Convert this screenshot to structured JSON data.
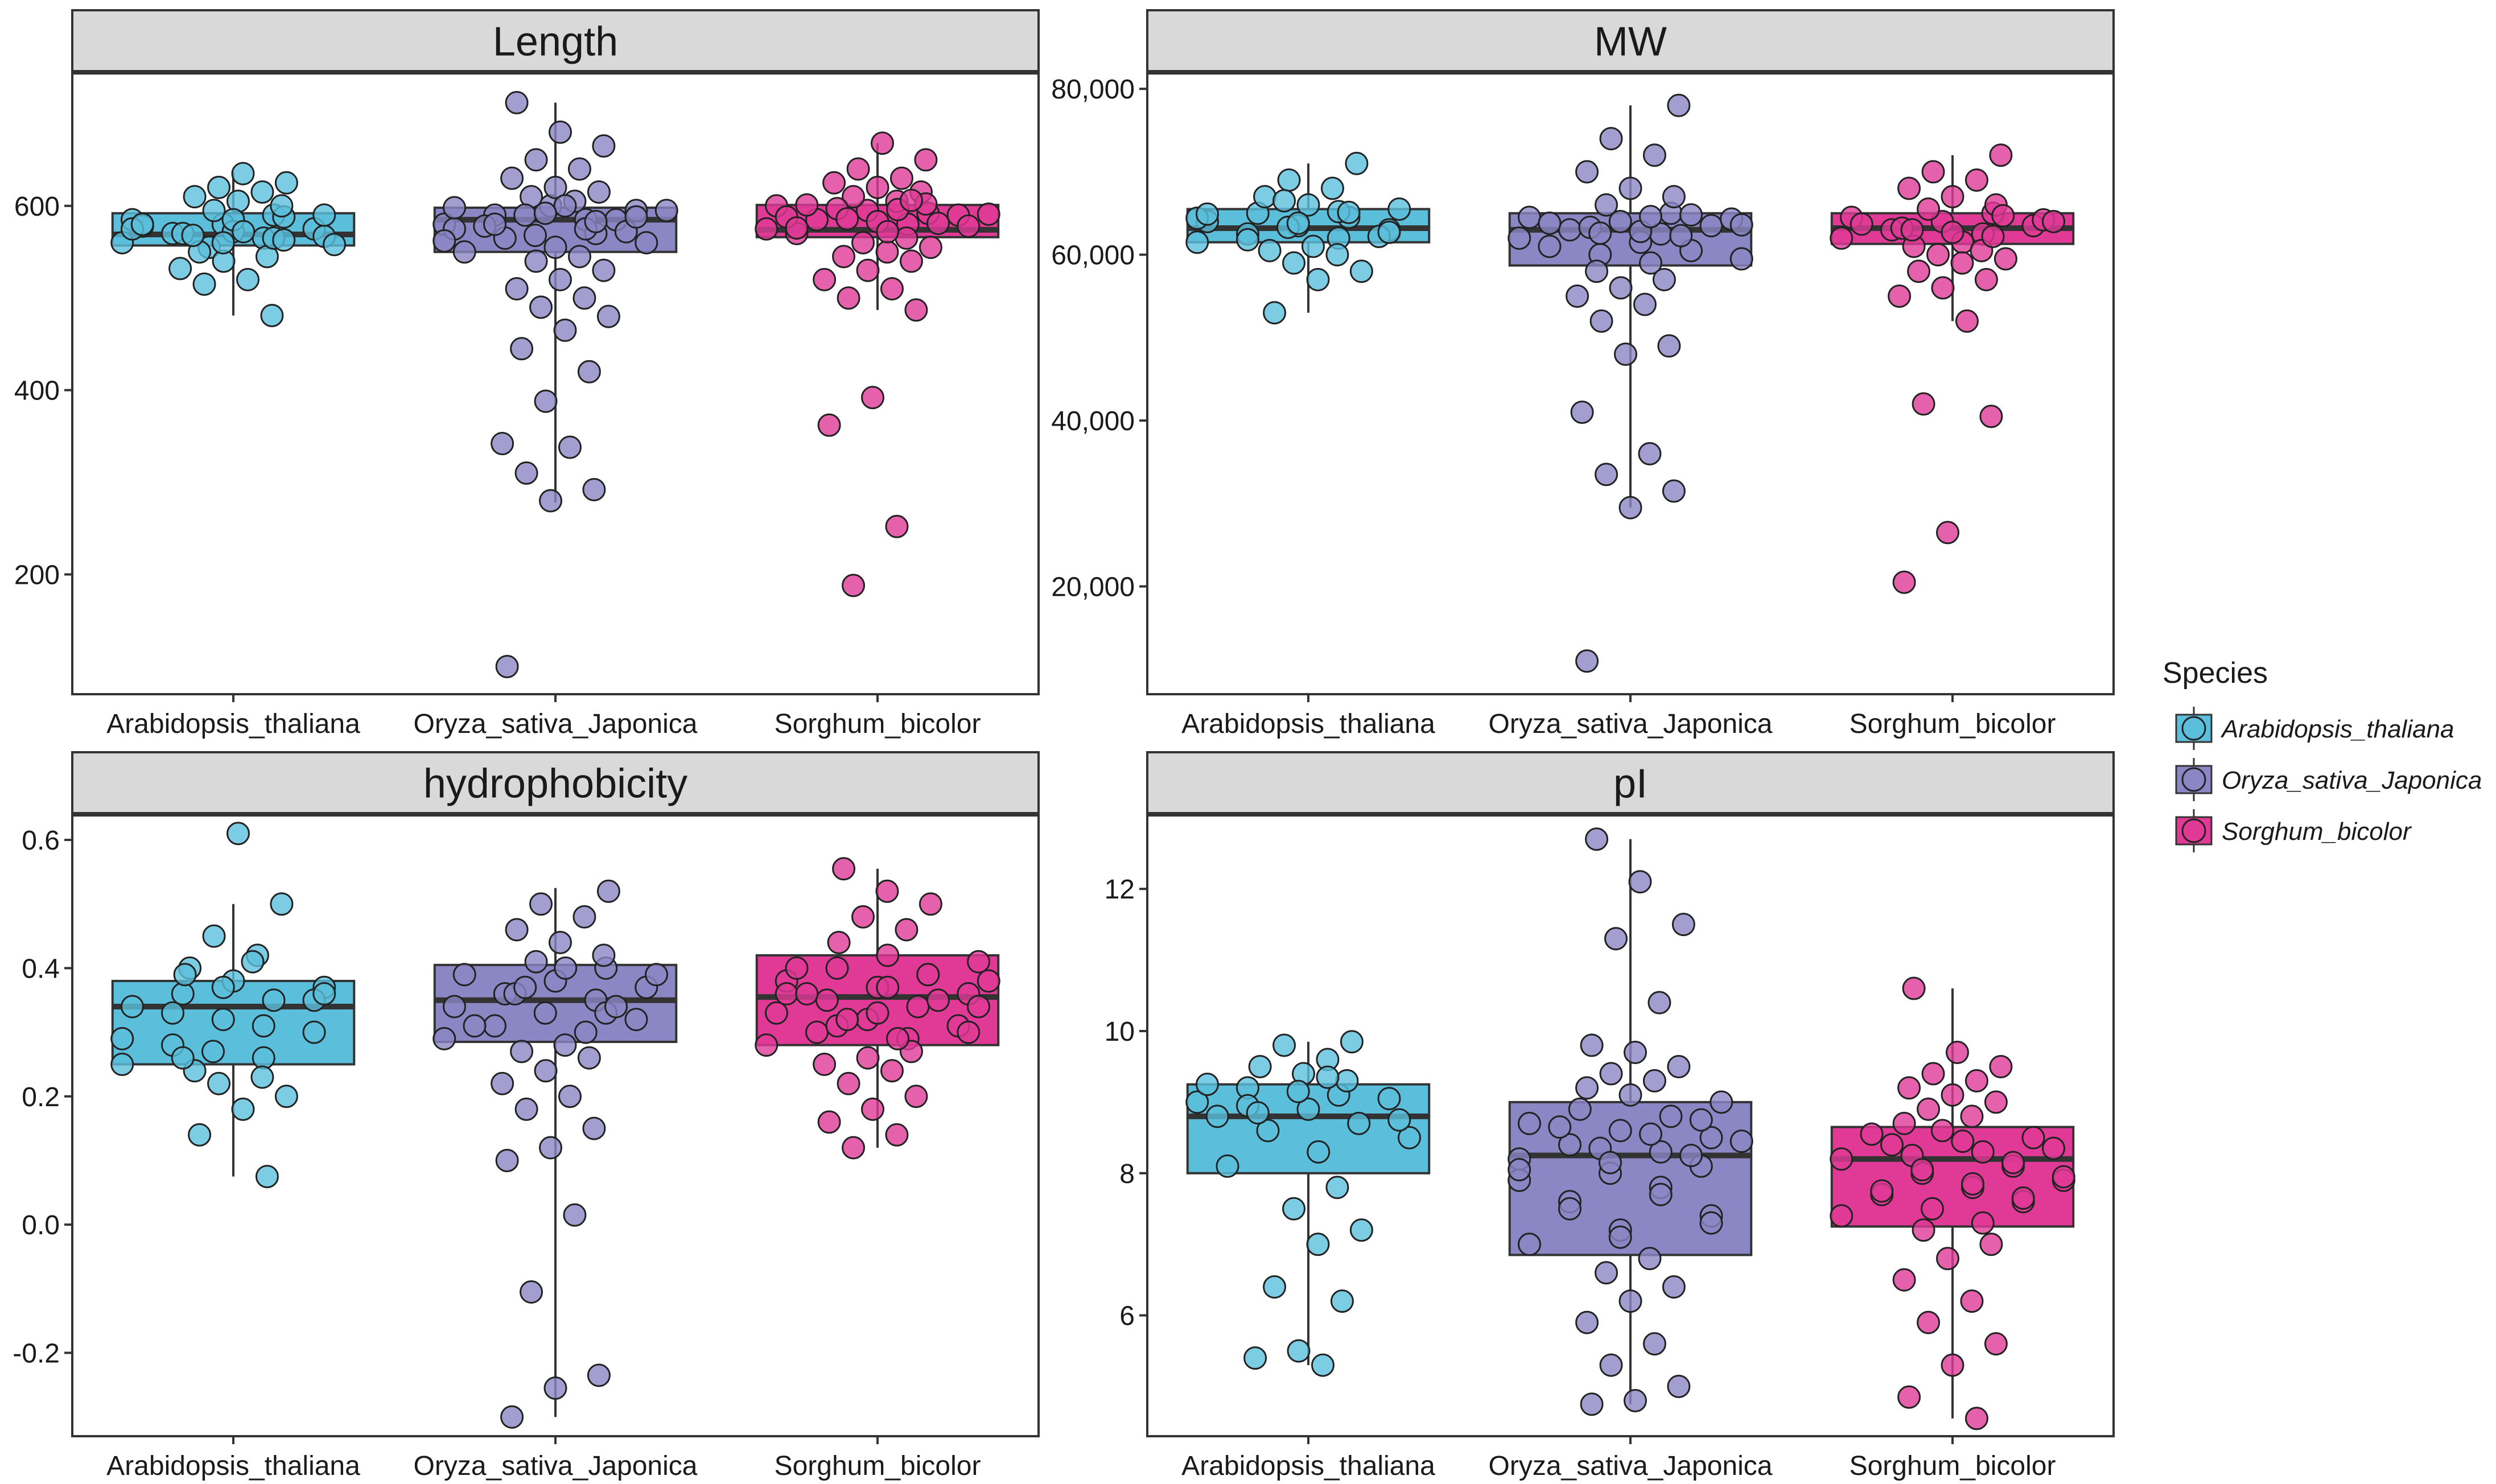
{
  "chart_data": {
    "type": "box_with_dots",
    "legend": {
      "title": "Species",
      "position": "right",
      "entries": [
        {
          "name": "Arabidopsis_thaliana",
          "color": "#5bbfdc"
        },
        {
          "name": "Oryza_sativa_Japonica",
          "color": "#8b86c4"
        },
        {
          "name": "Sorghum_bicolor",
          "color": "#e03a96"
        }
      ]
    },
    "panels": [
      {
        "title": "Length",
        "categories": [
          "Arabidopsis_thaliana",
          "Oryza_sativa_Japonica",
          "Sorghum_bicolor"
        ],
        "ylim": [
          70,
          745
        ],
        "yticks": [
          200,
          400,
          600
        ],
        "ytick_labels": [
          "200",
          "400",
          "600"
        ],
        "boxes": [
          {
            "q1": 557,
            "median": 569,
            "q3": 592,
            "whisker_low": 481,
            "whisker_high": 637
          },
          {
            "q1": 550,
            "median": 585,
            "q3": 598,
            "whisker_low": 278,
            "whisker_high": 712
          },
          {
            "q1": 566,
            "median": 574,
            "q3": 601,
            "whisker_low": 487,
            "whisker_high": 668
          }
        ],
        "points": [
          [
            560,
            565,
            570,
            575,
            580,
            585,
            590,
            555,
            567,
            572,
            578,
            588,
            595,
            600,
            605,
            610,
            615,
            620,
            625,
            635,
            550,
            545,
            540,
            532,
            520,
            515,
            481,
            560,
            575,
            565,
            570,
            590,
            585,
            580,
            563,
            568,
            558,
            572
          ],
          [
            580,
            585,
            590,
            595,
            600,
            575,
            570,
            565,
            560,
            555,
            550,
            545,
            540,
            530,
            520,
            510,
            500,
            490,
            480,
            465,
            445,
            420,
            388,
            342,
            338,
            310,
            292,
            280,
            100,
            605,
            610,
            615,
            620,
            630,
            640,
            650,
            665,
            680,
            712,
            585,
            590,
            595,
            600,
            578,
            572,
            568,
            562,
            575,
            580,
            588,
            592,
            598,
            583
          ],
          [
            575,
            580,
            585,
            590,
            595,
            600,
            605,
            610,
            615,
            620,
            625,
            630,
            640,
            650,
            668,
            570,
            565,
            560,
            555,
            550,
            545,
            540,
            530,
            520,
            510,
            500,
            487,
            392,
            362,
            252,
            188,
            578,
            583,
            588,
            592,
            597,
            602,
            572,
            576,
            581,
            586,
            591,
            596,
            601,
            606
          ]
        ]
      },
      {
        "title": "MW",
        "categories": [
          "Arabidopsis_thaliana",
          "Oryza_sativa_Japonica",
          "Sorghum_bicolor"
        ],
        "ylim": [
          7000,
          82000
        ],
        "yticks": [
          20000,
          40000,
          60000,
          80000
        ],
        "ytick_labels": [
          "20,000",
          "40,000",
          "60,000",
          "80,000"
        ],
        "boxes": [
          {
            "q1": 61500,
            "median": 63200,
            "q3": 65500,
            "whisker_low": 53000,
            "whisker_high": 71000
          },
          {
            "q1": 58700,
            "median": 63000,
            "q3": 65000,
            "whisker_low": 29500,
            "whisker_high": 78000
          },
          {
            "q1": 61300,
            "median": 63200,
            "q3": 65000,
            "whisker_low": 52000,
            "whisker_high": 72000
          }
        ],
        "points": [
          [
            61500,
            62000,
            62500,
            63000,
            63500,
            64000,
            64500,
            65000,
            65500,
            66000,
            67000,
            68000,
            69000,
            71000,
            61000,
            60500,
            60000,
            59000,
            58000,
            57000,
            53000,
            62200,
            63300,
            64400,
            65200,
            61800,
            62700,
            63800,
            64900,
            65100,
            66500
          ],
          [
            62000,
            62500,
            63000,
            63500,
            64000,
            64500,
            65000,
            66000,
            67000,
            68000,
            70000,
            72000,
            74000,
            78000,
            61500,
            61000,
            60500,
            60000,
            59500,
            59000,
            58000,
            57000,
            56000,
            55000,
            54000,
            52000,
            49000,
            48000,
            41000,
            36000,
            33500,
            31500,
            29500,
            11000,
            62300,
            63300,
            64300,
            62800,
            63800,
            64800,
            62600,
            63600,
            64600
          ],
          [
            62000,
            62500,
            63000,
            63500,
            64000,
            64500,
            65000,
            65500,
            66000,
            67000,
            68000,
            69000,
            70000,
            72000,
            61500,
            61000,
            60500,
            60000,
            59500,
            59000,
            58000,
            57000,
            56000,
            55000,
            52000,
            42000,
            40500,
            26500,
            20500,
            62200,
            63200,
            64200,
            62700,
            63700,
            64700,
            63000,
            64000
          ]
        ]
      },
      {
        "title": "hydrophobicity",
        "categories": [
          "Arabidopsis_thaliana",
          "Oryza_sativa_Japonica",
          "Sorghum_bicolor"
        ],
        "ylim": [
          -0.33,
          0.64
        ],
        "yticks": [
          -0.2,
          0.0,
          0.2,
          0.4,
          0.6
        ],
        "ytick_labels": [
          "-0.2",
          "0.0",
          "0.2",
          "0.4",
          "0.6"
        ],
        "boxes": [
          {
            "q1": 0.25,
            "median": 0.34,
            "q3": 0.38,
            "whisker_low": 0.075,
            "whisker_high": 0.5
          },
          {
            "q1": 0.285,
            "median": 0.35,
            "q3": 0.405,
            "whisker_low": -0.3,
            "whisker_high": 0.525
          },
          {
            "q1": 0.28,
            "median": 0.355,
            "q3": 0.42,
            "whisker_low": 0.12,
            "whisker_high": 0.555
          }
        ],
        "points": [
          [
            0.25,
            0.26,
            0.28,
            0.3,
            0.32,
            0.34,
            0.35,
            0.36,
            0.37,
            0.38,
            0.4,
            0.42,
            0.45,
            0.5,
            0.61,
            0.24,
            0.23,
            0.22,
            0.2,
            0.18,
            0.14,
            0.075,
            0.27,
            0.29,
            0.31,
            0.33,
            0.35,
            0.37,
            0.39,
            0.41,
            0.26,
            0.36
          ],
          [
            0.29,
            0.3,
            0.31,
            0.32,
            0.33,
            0.34,
            0.35,
            0.36,
            0.37,
            0.38,
            0.39,
            0.4,
            0.41,
            0.42,
            0.44,
            0.46,
            0.48,
            0.5,
            0.52,
            0.28,
            0.27,
            0.26,
            0.24,
            0.22,
            0.2,
            0.18,
            0.15,
            0.12,
            0.1,
            0.015,
            -0.105,
            -0.235,
            -0.255,
            -0.3,
            0.33,
            0.36,
            0.39,
            0.4,
            0.31,
            0.34,
            0.37
          ],
          [
            0.28,
            0.29,
            0.3,
            0.31,
            0.32,
            0.33,
            0.34,
            0.35,
            0.36,
            0.37,
            0.38,
            0.39,
            0.4,
            0.41,
            0.42,
            0.44,
            0.46,
            0.48,
            0.5,
            0.52,
            0.555,
            0.27,
            0.26,
            0.25,
            0.24,
            0.22,
            0.2,
            0.18,
            0.16,
            0.14,
            0.12,
            0.3,
            0.33,
            0.36,
            0.39,
            0.31,
            0.34,
            0.37,
            0.4,
            0.35,
            0.32,
            0.38,
            0.29,
            0.36
          ]
        ]
      },
      {
        "title": "pI",
        "categories": [
          "Arabidopsis_thaliana",
          "Oryza_sativa_Japonica",
          "Sorghum_bicolor"
        ],
        "ylim": [
          4.3,
          13.05
        ],
        "yticks": [
          6,
          8,
          10,
          12
        ],
        "ytick_labels": [
          "6",
          "8",
          "10",
          "12"
        ],
        "boxes": [
          {
            "q1": 8.0,
            "median": 8.8,
            "q3": 9.25,
            "whisker_low": 5.3,
            "whisker_high": 9.85
          },
          {
            "q1": 6.85,
            "median": 8.25,
            "q3": 9.0,
            "whisker_low": 4.75,
            "whisker_high": 12.7
          },
          {
            "q1": 7.25,
            "median": 8.2,
            "q3": 8.65,
            "whisker_low": 4.55,
            "whisker_high": 10.6
          }
        ],
        "points": [
          [
            9.0,
            9.1,
            9.2,
            9.3,
            9.4,
            9.5,
            9.6,
            9.8,
            9.85,
            8.9,
            8.8,
            8.7,
            8.6,
            8.5,
            8.3,
            8.1,
            7.8,
            7.5,
            7.2,
            7.0,
            6.4,
            6.2,
            5.5,
            5.4,
            5.3,
            8.95,
            9.05,
            9.15,
            9.25,
            9.35,
            8.85,
            8.75
          ],
          [
            8.2,
            8.3,
            8.4,
            8.5,
            8.6,
            8.7,
            8.8,
            8.9,
            9.0,
            9.1,
            9.2,
            9.3,
            9.4,
            9.5,
            9.7,
            9.8,
            10.4,
            11.3,
            11.5,
            12.1,
            12.7,
            8.1,
            8.0,
            7.9,
            7.8,
            7.6,
            7.4,
            7.2,
            7.0,
            6.8,
            6.6,
            6.4,
            6.2,
            5.9,
            5.6,
            5.3,
            5.0,
            4.8,
            4.75,
            8.25,
            8.35,
            8.45,
            8.55,
            8.65,
            8.75,
            8.15,
            8.05,
            7.7,
            7.5,
            7.3,
            7.1
          ],
          [
            8.2,
            8.3,
            8.4,
            8.5,
            8.6,
            8.7,
            8.8,
            8.9,
            9.0,
            9.1,
            9.2,
            9.3,
            9.4,
            9.5,
            9.7,
            10.6,
            8.1,
            8.0,
            7.9,
            7.8,
            7.7,
            7.6,
            7.5,
            7.4,
            7.3,
            7.2,
            7.0,
            6.8,
            6.5,
            6.2,
            5.9,
            5.6,
            5.3,
            4.85,
            4.55,
            8.25,
            8.35,
            8.45,
            8.55,
            8.15,
            8.05,
            7.95,
            7.85,
            7.75,
            7.65
          ]
        ]
      }
    ]
  }
}
